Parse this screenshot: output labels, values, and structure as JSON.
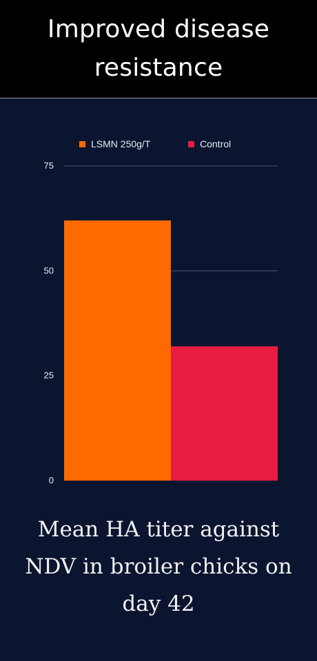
{
  "header": {
    "title": "Improved disease resistance"
  },
  "chart_data": {
    "type": "bar",
    "title": "",
    "xlabel": "",
    "ylabel": "",
    "categories": [
      ""
    ],
    "series": [
      {
        "name": "LSMN 250g/T",
        "values": [
          62
        ],
        "color": "#ff6a00"
      },
      {
        "name": "Control",
        "values": [
          32
        ],
        "color": "#e81c40"
      }
    ],
    "ylim": [
      0,
      75
    ],
    "yticks": [
      0,
      25,
      50,
      75
    ],
    "grid": true,
    "legend": "top-center"
  },
  "caption": {
    "text": "Mean HA titer against NDV in broiler chicks on day 42"
  }
}
